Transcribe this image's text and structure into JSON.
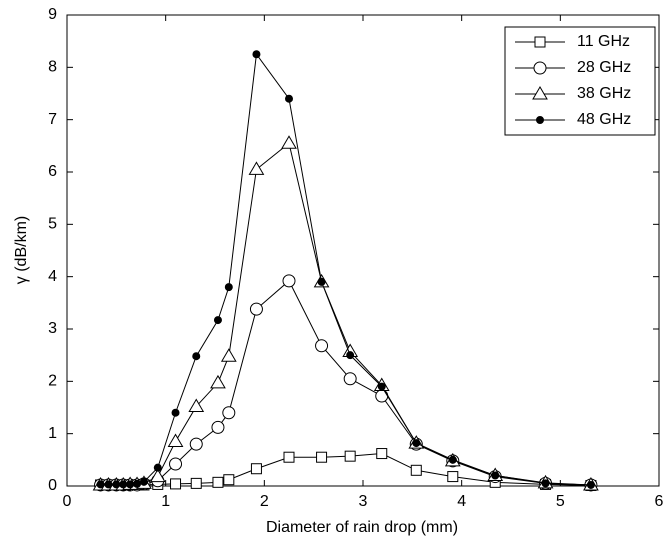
{
  "chart_data": {
    "type": "line",
    "xlabel": "Diameter of rain drop (mm)",
    "ylabel": "γ (dB/km)",
    "x": [
      0.34,
      0.42,
      0.5,
      0.57,
      0.64,
      0.71,
      0.78,
      0.92,
      1.1,
      1.31,
      1.53,
      1.64,
      1.92,
      2.25,
      2.58,
      2.87,
      3.19,
      3.54,
      3.91,
      4.34,
      4.85,
      5.31
    ],
    "series": [
      {
        "name": "11 GHz",
        "color": "#000000",
        "marker": "square",
        "values": [
          0.02,
          0.02,
          0.02,
          0.02,
          0.02,
          0.02,
          0.02,
          0.03,
          0.04,
          0.05,
          0.07,
          0.12,
          0.33,
          0.55,
          0.55,
          0.57,
          0.62,
          0.3,
          0.18,
          0.07,
          0.03,
          0.01
        ]
      },
      {
        "name": "28 GHz",
        "color": "#000000",
        "marker": "circle",
        "values": [
          0.02,
          0.02,
          0.02,
          0.02,
          0.02,
          0.02,
          0.04,
          0.1,
          0.42,
          0.8,
          1.12,
          1.4,
          3.38,
          3.92,
          2.68,
          2.05,
          1.72,
          0.8,
          0.48,
          0.18,
          0.05,
          0.02
        ]
      },
      {
        "name": "38 GHz",
        "color": "#000000",
        "marker": "triangle",
        "values": [
          0.02,
          0.02,
          0.02,
          0.02,
          0.03,
          0.03,
          0.05,
          0.18,
          0.85,
          1.52,
          1.97,
          2.48,
          6.05,
          6.55,
          3.9,
          2.57,
          1.92,
          0.82,
          0.48,
          0.2,
          0.06,
          0.02
        ]
      },
      {
        "name": "48 GHz",
        "color": "#000000",
        "marker": "dot",
        "values": [
          0.03,
          0.03,
          0.03,
          0.03,
          0.03,
          0.04,
          0.08,
          0.35,
          1.4,
          2.48,
          3.17,
          3.8,
          8.25,
          7.4,
          3.9,
          2.5,
          1.9,
          0.82,
          0.5,
          0.2,
          0.05,
          0.02
        ]
      }
    ],
    "xlim": [
      0,
      6
    ],
    "xticks": [
      0,
      1,
      2,
      3,
      4,
      5,
      6
    ],
    "ylim": [
      0,
      9
    ],
    "yticks": [
      0,
      1,
      2,
      3,
      4,
      5,
      6,
      7,
      8,
      9
    ],
    "grid": false,
    "legend": "upper right"
  }
}
